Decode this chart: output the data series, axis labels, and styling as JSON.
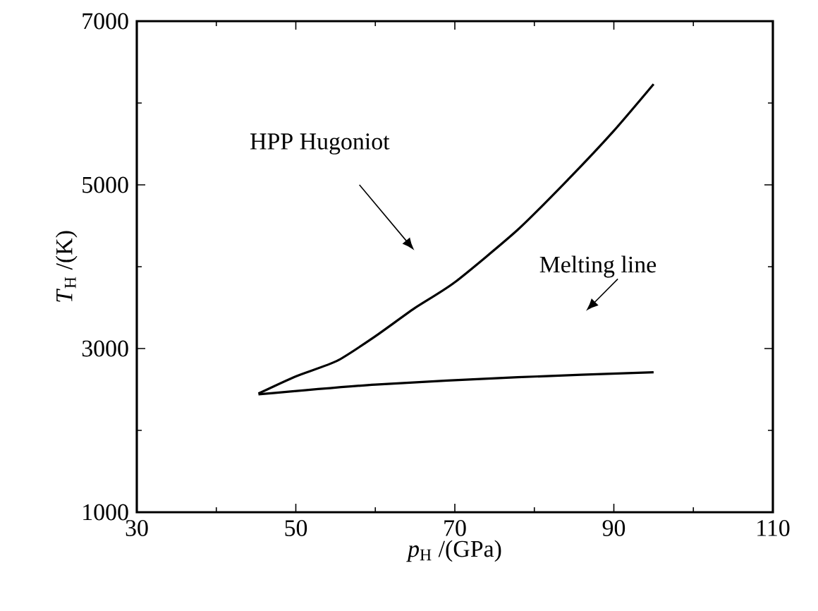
{
  "chart_data": {
    "type": "line",
    "xlabel": "*p*$_{H}$ /(GPa)",
    "ylabel": "*T*$_{H}$ /(K)",
    "xlim": [
      30,
      110
    ],
    "xticks": [
      30,
      50,
      70,
      90,
      110
    ],
    "ylim": [
      1000,
      7000
    ],
    "yticks": [
      1000,
      3000,
      5000,
      7000
    ],
    "series": [
      {
        "color": "#000000",
        "x": [
          45.3,
          50,
          55.2,
          60,
          64.9,
          70,
          77.9,
          84.4,
          90,
          95
        ],
        "values": [
          2450,
          2660,
          2850,
          3150,
          3490,
          3810,
          4450,
          5080,
          5660,
          6230
        ]
      },
      {
        "color": "#000000",
        "x": [
          45.3,
          60,
          77.9,
          95
        ],
        "values": [
          2440,
          2560,
          2650,
          2710
        ]
      }
    ],
    "annotations": [
      "HPP Hugoniot",
      "Melting line"
    ],
    "line_style": "solid"
  }
}
